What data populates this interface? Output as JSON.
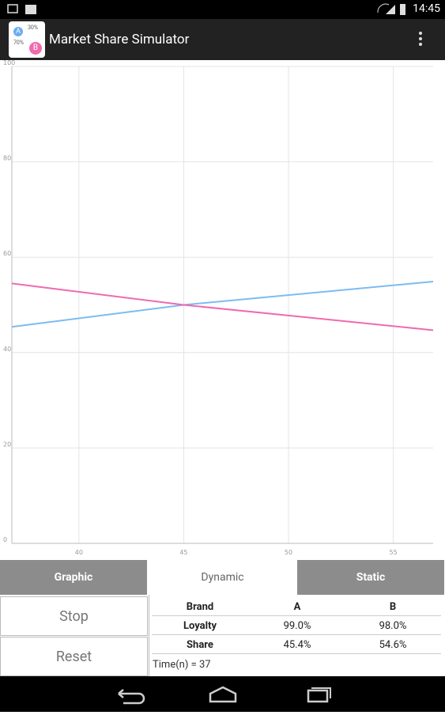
{
  "status_bar": {
    "time": "14:45"
  },
  "app_bar": {
    "title": "Market Share Simulator",
    "icon": {
      "label_a": "A",
      "label_b": "B",
      "value_a": "30%",
      "value_b": "70%"
    }
  },
  "chart_data": {
    "type": "line",
    "x": [
      36.8,
      45,
      56.9
    ],
    "series": [
      {
        "color": "#7cbcf2",
        "values": [
          45.4,
          50,
          54.9
        ]
      },
      {
        "color": "#f06aae",
        "values": [
          54.5,
          50,
          44.7
        ]
      }
    ],
    "xlim": [
      36.8,
      56.9
    ],
    "ylim": [
      0,
      100
    ],
    "xticks": [
      40,
      45,
      50,
      55
    ],
    "yticks": [
      0,
      20,
      40,
      60,
      80,
      100
    ],
    "grid": true
  },
  "tabs": [
    "Graphic",
    "Dynamic",
    "Static"
  ],
  "selected_tab": 1,
  "buttons": [
    "Stop",
    "Reset"
  ],
  "table": {
    "header": [
      "Brand",
      "A",
      "B"
    ],
    "rows": [
      [
        "Loyalty",
        "99.0%",
        "98.0%"
      ],
      [
        "Share",
        "45.4%",
        "54.6%"
      ]
    ]
  },
  "time_label": "Time(n) = 37"
}
